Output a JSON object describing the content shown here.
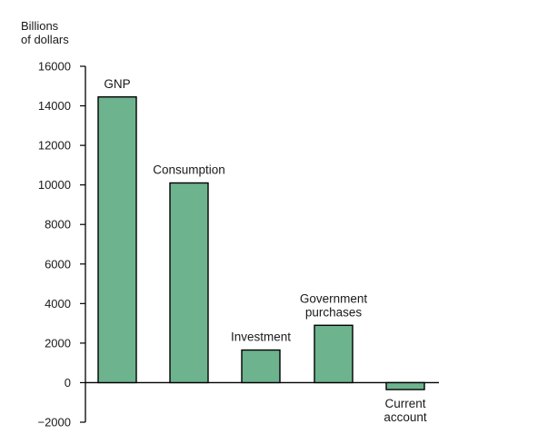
{
  "chart_data": {
    "type": "bar",
    "ylabel": [
      "Billions",
      "of dollars"
    ],
    "ylim": [
      -2000,
      16000
    ],
    "y_ticks": [
      16000,
      14000,
      12000,
      10000,
      8000,
      6000,
      4000,
      2000,
      0,
      -2000
    ],
    "y_tick_labels": [
      "16000",
      "14000",
      "12000",
      "10000",
      "8000",
      "6000",
      "4000",
      "2000",
      "0",
      "−2000"
    ],
    "grid": false,
    "categories": [
      {
        "label": [
          "GNP"
        ],
        "label_position": "above",
        "value": 14450
      },
      {
        "label": [
          "Consumption"
        ],
        "label_position": "above",
        "value": 10100
      },
      {
        "label": [
          "Investment"
        ],
        "label_position": "above",
        "value": 1650
      },
      {
        "label": [
          "Government",
          "purchases"
        ],
        "label_position": "above",
        "value": 2900
      },
      {
        "label": [
          "Current",
          "account"
        ],
        "label_position": "below",
        "value": -350
      }
    ],
    "colors": {
      "bar_fill": "#6db38e",
      "bar_stroke": "#000000",
      "axis": "#000000"
    }
  }
}
